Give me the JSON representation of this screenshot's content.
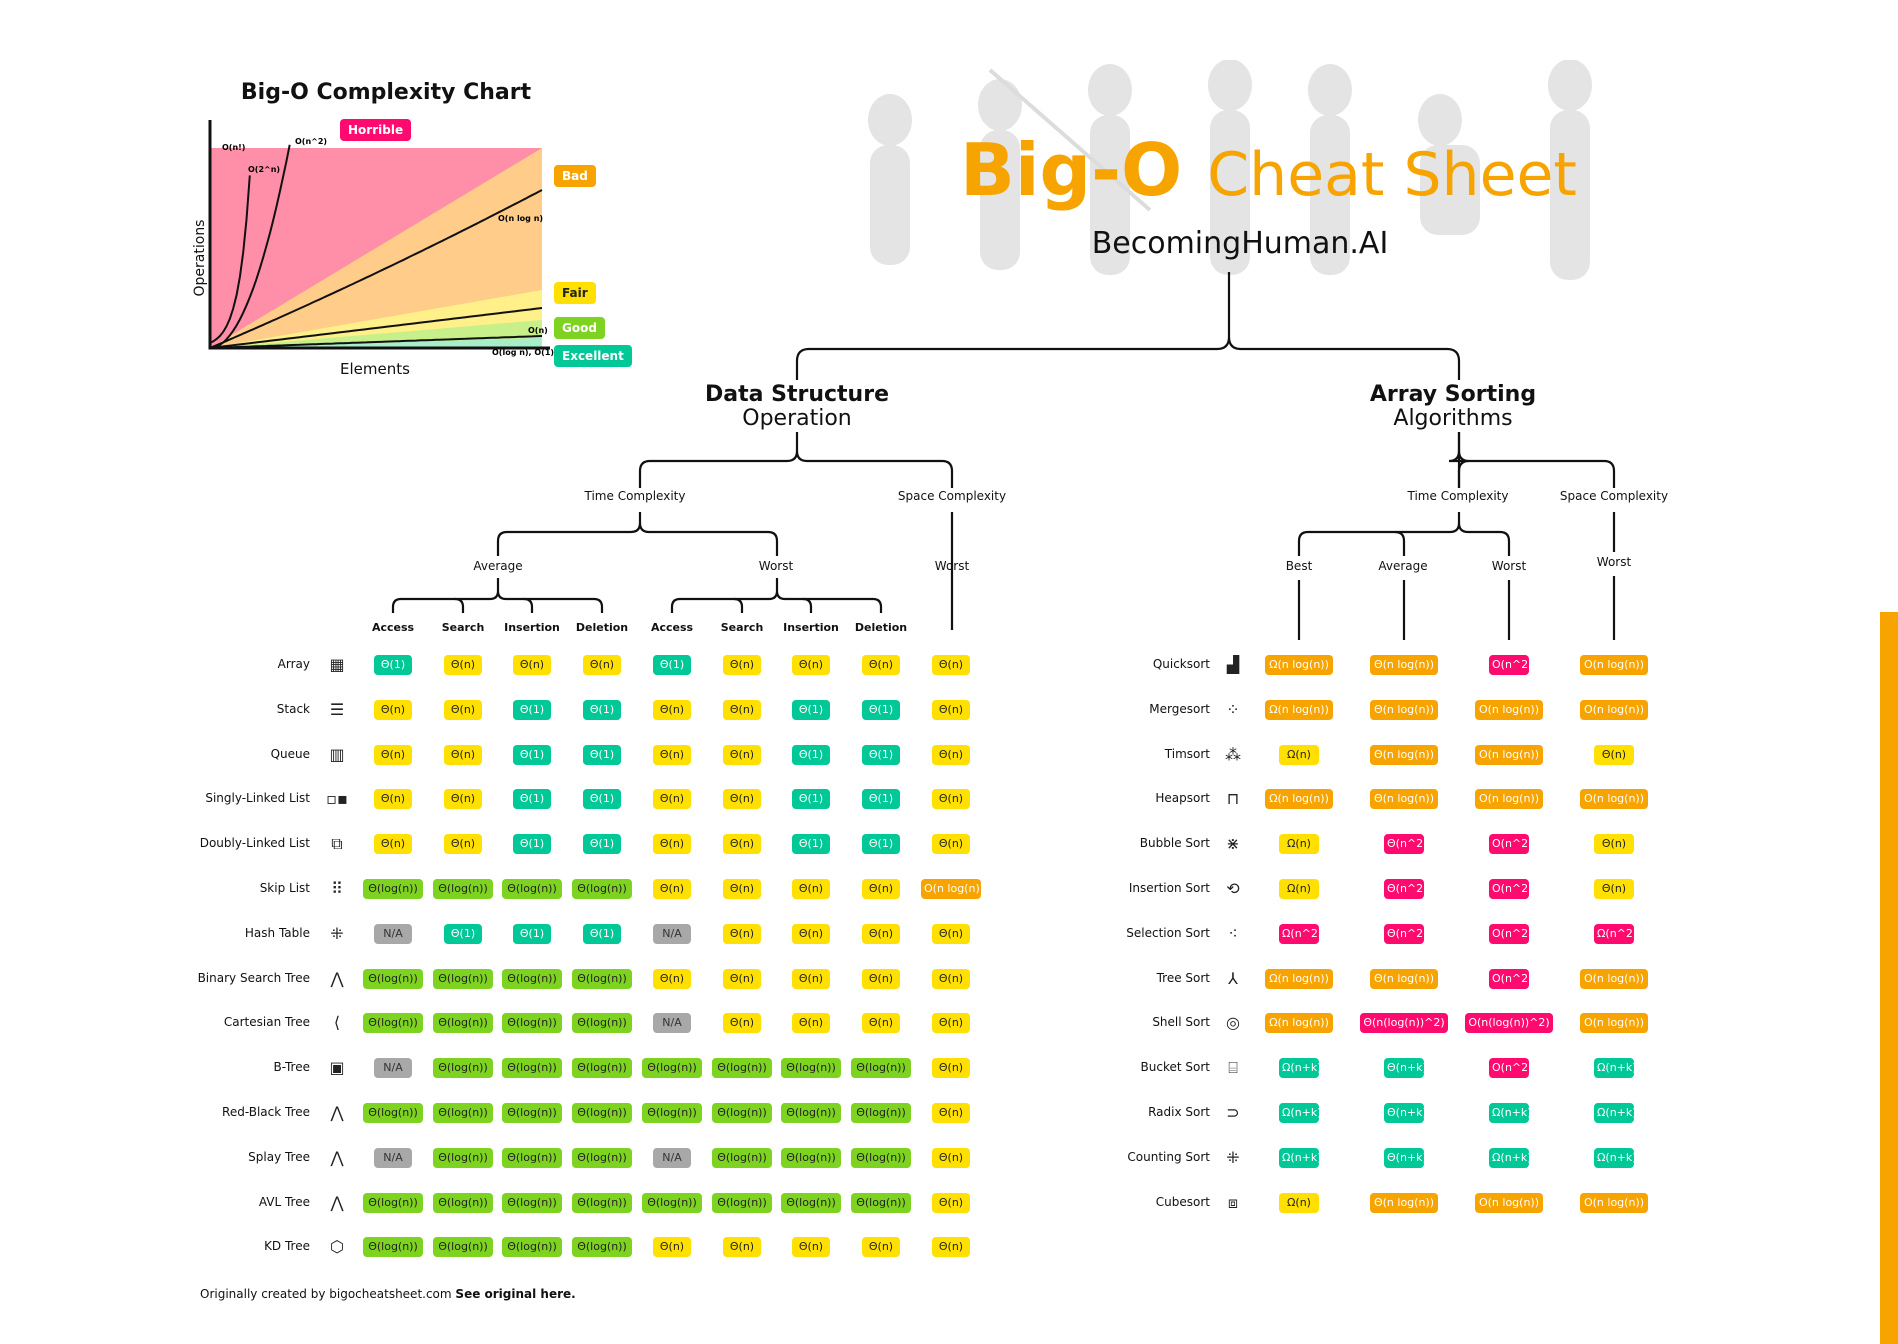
{
  "colors": {
    "excellent": "#00c896",
    "good": "#7ed321",
    "fair": "#ffe000",
    "bad": "#f7a400",
    "horrible": "#ff0a6e",
    "na": "#a8a8a8",
    "accent": "#f7a400"
  },
  "chart": {
    "title": "Big-O Complexity Chart",
    "ylabel": "Operations",
    "xlabel": "Elements",
    "zones": [
      "Horrible",
      "Bad",
      "Fair",
      "Good",
      "Excellent"
    ],
    "curve_labels": [
      "O(n!)",
      "O(2^n)",
      "O(n^2)",
      "O(n log n)",
      "O(n)",
      "O(log n), O(1)"
    ]
  },
  "header": {
    "title_bold": "Big-O",
    "title_rest": "Cheat Sheet",
    "subtitle": "BecomingHuman.AI"
  },
  "ds": {
    "title": "Data Structure",
    "subtitle": "Operation",
    "time": "Time Complexity",
    "space": "Space Complexity",
    "average": "Average",
    "worst": "Worst",
    "space_worst": "Worst",
    "cols": [
      "Access",
      "Search",
      "Insertion",
      "Deletion",
      "Access",
      "Search",
      "Insertion",
      "Deletion"
    ],
    "rows": [
      {
        "name": "Array",
        "icon": "array-icon",
        "glyph": "▦",
        "cells": [
          [
            "Θ(1)",
            "e"
          ],
          [
            "Θ(n)",
            "f"
          ],
          [
            "Θ(n)",
            "f"
          ],
          [
            "Θ(n)",
            "f"
          ],
          [
            "Θ(1)",
            "e"
          ],
          [
            "Θ(n)",
            "f"
          ],
          [
            "Θ(n)",
            "f"
          ],
          [
            "Θ(n)",
            "f"
          ],
          [
            "Θ(n)",
            "f"
          ]
        ]
      },
      {
        "name": "Stack",
        "icon": "stack-icon",
        "glyph": "☰",
        "cells": [
          [
            "Θ(n)",
            "f"
          ],
          [
            "Θ(n)",
            "f"
          ],
          [
            "Θ(1)",
            "e"
          ],
          [
            "Θ(1)",
            "e"
          ],
          [
            "Θ(n)",
            "f"
          ],
          [
            "Θ(n)",
            "f"
          ],
          [
            "Θ(1)",
            "e"
          ],
          [
            "Θ(1)",
            "e"
          ],
          [
            "Θ(n)",
            "f"
          ]
        ]
      },
      {
        "name": "Queue",
        "icon": "queue-icon",
        "glyph": "▥",
        "cells": [
          [
            "Θ(n)",
            "f"
          ],
          [
            "Θ(n)",
            "f"
          ],
          [
            "Θ(1)",
            "e"
          ],
          [
            "Θ(1)",
            "e"
          ],
          [
            "Θ(n)",
            "f"
          ],
          [
            "Θ(n)",
            "f"
          ],
          [
            "Θ(1)",
            "e"
          ],
          [
            "Θ(1)",
            "e"
          ],
          [
            "Θ(n)",
            "f"
          ]
        ]
      },
      {
        "name": "Singly-Linked List",
        "icon": "singly-linked-list-icon",
        "glyph": "▫▪",
        "cells": [
          [
            "Θ(n)",
            "f"
          ],
          [
            "Θ(n)",
            "f"
          ],
          [
            "Θ(1)",
            "e"
          ],
          [
            "Θ(1)",
            "e"
          ],
          [
            "Θ(n)",
            "f"
          ],
          [
            "Θ(n)",
            "f"
          ],
          [
            "Θ(1)",
            "e"
          ],
          [
            "Θ(1)",
            "e"
          ],
          [
            "Θ(n)",
            "f"
          ]
        ]
      },
      {
        "name": "Doubly-Linked List",
        "icon": "doubly-linked-list-icon",
        "glyph": "⧉",
        "cells": [
          [
            "Θ(n)",
            "f"
          ],
          [
            "Θ(n)",
            "f"
          ],
          [
            "Θ(1)",
            "e"
          ],
          [
            "Θ(1)",
            "e"
          ],
          [
            "Θ(n)",
            "f"
          ],
          [
            "Θ(n)",
            "f"
          ],
          [
            "Θ(1)",
            "e"
          ],
          [
            "Θ(1)",
            "e"
          ],
          [
            "Θ(n)",
            "f"
          ]
        ]
      },
      {
        "name": "Skip List",
        "icon": "skip-list-icon",
        "glyph": "⠿",
        "cells": [
          [
            "Θ(log(n))",
            "g"
          ],
          [
            "Θ(log(n))",
            "g"
          ],
          [
            "Θ(log(n))",
            "g"
          ],
          [
            "Θ(log(n))",
            "g"
          ],
          [
            "Θ(n)",
            "f"
          ],
          [
            "Θ(n)",
            "f"
          ],
          [
            "Θ(n)",
            "f"
          ],
          [
            "Θ(n)",
            "f"
          ],
          [
            "O(n log(n))",
            "b"
          ]
        ]
      },
      {
        "name": "Hash Table",
        "icon": "hash-table-icon",
        "glyph": "⁜",
        "cells": [
          [
            "N/A",
            "n"
          ],
          [
            "Θ(1)",
            "e"
          ],
          [
            "Θ(1)",
            "e"
          ],
          [
            "Θ(1)",
            "e"
          ],
          [
            "N/A",
            "n"
          ],
          [
            "Θ(n)",
            "f"
          ],
          [
            "Θ(n)",
            "f"
          ],
          [
            "Θ(n)",
            "f"
          ],
          [
            "Θ(n)",
            "f"
          ]
        ]
      },
      {
        "name": "Binary Search Tree",
        "icon": "binary-search-tree-icon",
        "glyph": "⋀",
        "cells": [
          [
            "Θ(log(n))",
            "g"
          ],
          [
            "Θ(log(n))",
            "g"
          ],
          [
            "Θ(log(n))",
            "g"
          ],
          [
            "Θ(log(n))",
            "g"
          ],
          [
            "Θ(n)",
            "f"
          ],
          [
            "Θ(n)",
            "f"
          ],
          [
            "Θ(n)",
            "f"
          ],
          [
            "Θ(n)",
            "f"
          ],
          [
            "Θ(n)",
            "f"
          ]
        ]
      },
      {
        "name": "Cartesian Tree",
        "icon": "cartesian-tree-icon",
        "glyph": "⟨",
        "cells": [
          [
            "Θ(log(n))",
            "g"
          ],
          [
            "Θ(log(n))",
            "g"
          ],
          [
            "Θ(log(n))",
            "g"
          ],
          [
            "Θ(log(n))",
            "g"
          ],
          [
            "N/A",
            "n"
          ],
          [
            "Θ(n)",
            "f"
          ],
          [
            "Θ(n)",
            "f"
          ],
          [
            "Θ(n)",
            "f"
          ],
          [
            "Θ(n)",
            "f"
          ]
        ]
      },
      {
        "name": "B-Tree",
        "icon": "b-tree-icon",
        "glyph": "▣",
        "cells": [
          [
            "N/A",
            "n"
          ],
          [
            "Θ(log(n))",
            "g"
          ],
          [
            "Θ(log(n))",
            "g"
          ],
          [
            "Θ(log(n))",
            "g"
          ],
          [
            "Θ(log(n))",
            "g"
          ],
          [
            "Θ(log(n))",
            "g"
          ],
          [
            "Θ(log(n))",
            "g"
          ],
          [
            "Θ(log(n))",
            "g"
          ],
          [
            "Θ(n)",
            "f"
          ]
        ]
      },
      {
        "name": "Red-Black Tree",
        "icon": "red-black-tree-icon",
        "glyph": "⋀",
        "cells": [
          [
            "Θ(log(n))",
            "g"
          ],
          [
            "Θ(log(n))",
            "g"
          ],
          [
            "Θ(log(n))",
            "g"
          ],
          [
            "Θ(log(n))",
            "g"
          ],
          [
            "Θ(log(n))",
            "g"
          ],
          [
            "Θ(log(n))",
            "g"
          ],
          [
            "Θ(log(n))",
            "g"
          ],
          [
            "Θ(log(n))",
            "g"
          ],
          [
            "Θ(n)",
            "f"
          ]
        ]
      },
      {
        "name": "Splay Tree",
        "icon": "splay-tree-icon",
        "glyph": "⋀",
        "cells": [
          [
            "N/A",
            "n"
          ],
          [
            "Θ(log(n))",
            "g"
          ],
          [
            "Θ(log(n))",
            "g"
          ],
          [
            "Θ(log(n))",
            "g"
          ],
          [
            "N/A",
            "n"
          ],
          [
            "Θ(log(n))",
            "g"
          ],
          [
            "Θ(log(n))",
            "g"
          ],
          [
            "Θ(log(n))",
            "g"
          ],
          [
            "Θ(n)",
            "f"
          ]
        ]
      },
      {
        "name": "AVL Tree",
        "icon": "avl-tree-icon",
        "glyph": "⋀",
        "cells": [
          [
            "Θ(log(n))",
            "g"
          ],
          [
            "Θ(log(n))",
            "g"
          ],
          [
            "Θ(log(n))",
            "g"
          ],
          [
            "Θ(log(n))",
            "g"
          ],
          [
            "Θ(log(n))",
            "g"
          ],
          [
            "Θ(log(n))",
            "g"
          ],
          [
            "Θ(log(n))",
            "g"
          ],
          [
            "Θ(log(n))",
            "g"
          ],
          [
            "Θ(n)",
            "f"
          ]
        ]
      },
      {
        "name": "KD Tree",
        "icon": "kd-tree-icon",
        "glyph": "⬡",
        "cells": [
          [
            "Θ(log(n))",
            "g"
          ],
          [
            "Θ(log(n))",
            "g"
          ],
          [
            "Θ(log(n))",
            "g"
          ],
          [
            "Θ(log(n))",
            "g"
          ],
          [
            "Θ(n)",
            "f"
          ],
          [
            "Θ(n)",
            "f"
          ],
          [
            "Θ(n)",
            "f"
          ],
          [
            "Θ(n)",
            "f"
          ],
          [
            "Θ(n)",
            "f"
          ]
        ]
      }
    ]
  },
  "sort": {
    "title": "Array Sorting",
    "subtitle": "Algorithms",
    "time": "Time Complexity",
    "space": "Space Complexity",
    "best": "Best",
    "average": "Average",
    "worst": "Worst",
    "space_worst": "Worst",
    "rows": [
      {
        "name": "Quicksort",
        "icon": "quicksort-icon",
        "glyph": "▟",
        "cells": [
          [
            "Ω(n log(n))",
            "b"
          ],
          [
            "Θ(n log(n))",
            "b"
          ],
          [
            "O(n^2)",
            "h"
          ],
          [
            "O(n log(n))",
            "b"
          ]
        ]
      },
      {
        "name": "Mergesort",
        "icon": "mergesort-icon",
        "glyph": "⁘",
        "cells": [
          [
            "Ω(n log(n))",
            "b"
          ],
          [
            "Θ(n log(n))",
            "b"
          ],
          [
            "O(n log(n))",
            "b"
          ],
          [
            "O(n log(n))",
            "b"
          ]
        ]
      },
      {
        "name": "Timsort",
        "icon": "timsort-icon",
        "glyph": "⁂",
        "cells": [
          [
            "Ω(n)",
            "f"
          ],
          [
            "Θ(n log(n))",
            "b"
          ],
          [
            "O(n log(n))",
            "b"
          ],
          [
            "Θ(n)",
            "f"
          ]
        ]
      },
      {
        "name": "Heapsort",
        "icon": "heapsort-icon",
        "glyph": "⊓",
        "cells": [
          [
            "Ω(n log(n))",
            "b"
          ],
          [
            "Θ(n log(n))",
            "b"
          ],
          [
            "O(n log(n))",
            "b"
          ],
          [
            "O(n log(n))",
            "b"
          ]
        ]
      },
      {
        "name": "Bubble Sort",
        "icon": "bubble-sort-icon",
        "glyph": "⋇",
        "cells": [
          [
            "Ω(n)",
            "f"
          ],
          [
            "Θ(n^2)",
            "h"
          ],
          [
            "O(n^2)",
            "h"
          ],
          [
            "Θ(n)",
            "f"
          ]
        ]
      },
      {
        "name": "Insertion Sort",
        "icon": "insertion-sort-icon",
        "glyph": "⟲",
        "cells": [
          [
            "Ω(n)",
            "f"
          ],
          [
            "Θ(n^2)",
            "h"
          ],
          [
            "O(n^2)",
            "h"
          ],
          [
            "Θ(n)",
            "f"
          ]
        ]
      },
      {
        "name": "Selection Sort",
        "icon": "selection-sort-icon",
        "glyph": "⁖",
        "cells": [
          [
            "Ω(n^2)",
            "h"
          ],
          [
            "Θ(n^2)",
            "h"
          ],
          [
            "O(n^2)",
            "h"
          ],
          [
            "Ω(n^2)",
            "h"
          ]
        ]
      },
      {
        "name": "Tree Sort",
        "icon": "tree-sort-icon",
        "glyph": "⅄",
        "cells": [
          [
            "Ω(n log(n))",
            "b"
          ],
          [
            "Θ(n log(n))",
            "b"
          ],
          [
            "O(n^2)",
            "h"
          ],
          [
            "O(n log(n))",
            "b"
          ]
        ]
      },
      {
        "name": "Shell Sort",
        "icon": "shell-sort-icon",
        "glyph": "◎",
        "cells": [
          [
            "Ω(n log(n))",
            "b"
          ],
          [
            "Θ(n(log(n))^2)",
            "h"
          ],
          [
            "O(n(log(n))^2)",
            "h"
          ],
          [
            "O(n log(n))",
            "b"
          ]
        ]
      },
      {
        "name": "Bucket Sort",
        "icon": "bucket-sort-icon",
        "glyph": "⌸",
        "cells": [
          [
            "Ω(n+k)",
            "e"
          ],
          [
            "Θ(n+k)",
            "e"
          ],
          [
            "O(n^2)",
            "h"
          ],
          [
            "Ω(n+k)",
            "e"
          ]
        ]
      },
      {
        "name": "Radix Sort",
        "icon": "radix-sort-icon",
        "glyph": "⊃",
        "cells": [
          [
            "Ω(n+k)",
            "e"
          ],
          [
            "Θ(n+k)",
            "e"
          ],
          [
            "Ω(n+k)",
            "e"
          ],
          [
            "Ω(n+k)",
            "e"
          ]
        ]
      },
      {
        "name": "Counting Sort",
        "icon": "counting-sort-icon",
        "glyph": "⁜",
        "cells": [
          [
            "Ω(n+k)",
            "e"
          ],
          [
            "Θ(n+k)",
            "e"
          ],
          [
            "Ω(n+k)",
            "e"
          ],
          [
            "Ω(n+k)",
            "e"
          ]
        ]
      },
      {
        "name": "Cubesort",
        "icon": "cubesort-icon",
        "glyph": "⧈",
        "cells": [
          [
            "Ω(n)",
            "f"
          ],
          [
            "Θ(n log(n))",
            "b"
          ],
          [
            "O(n log(n))",
            "b"
          ],
          [
            "O(n log(n))",
            "b"
          ]
        ]
      }
    ]
  },
  "footer": {
    "text": "Originally created by bigocheatsheet.com",
    "link": "See original here."
  }
}
